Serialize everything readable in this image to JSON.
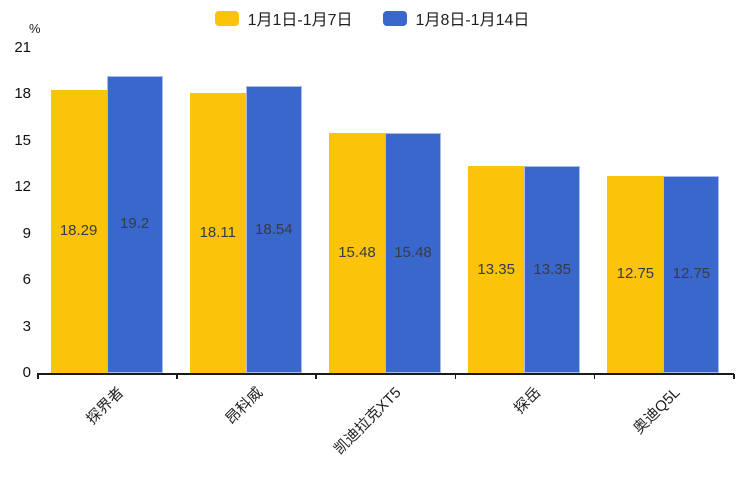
{
  "chart_data": {
    "type": "bar",
    "title": "",
    "unit": "%",
    "categories": [
      "探界者",
      "昂科威",
      "凯迪拉克XT5",
      "探岳",
      "奥迪Q5L"
    ],
    "series": [
      {
        "name": "1月1日-1月7日",
        "color": "#FCC30B",
        "values": [
          18.29,
          18.11,
          15.48,
          13.35,
          12.75
        ]
      },
      {
        "name": "1月8日-1月14日",
        "color": "#3A67CB",
        "values": [
          19.2,
          18.54,
          15.48,
          13.35,
          12.75
        ]
      }
    ],
    "xlabel": "",
    "ylabel": "%",
    "ylim": [
      0,
      21
    ],
    "yticks": [
      0,
      3,
      6,
      9,
      12,
      15,
      18,
      21
    ],
    "grid": false,
    "legend_position": "top",
    "value_labels": "inside-center",
    "xtick_rotation": -45
  }
}
